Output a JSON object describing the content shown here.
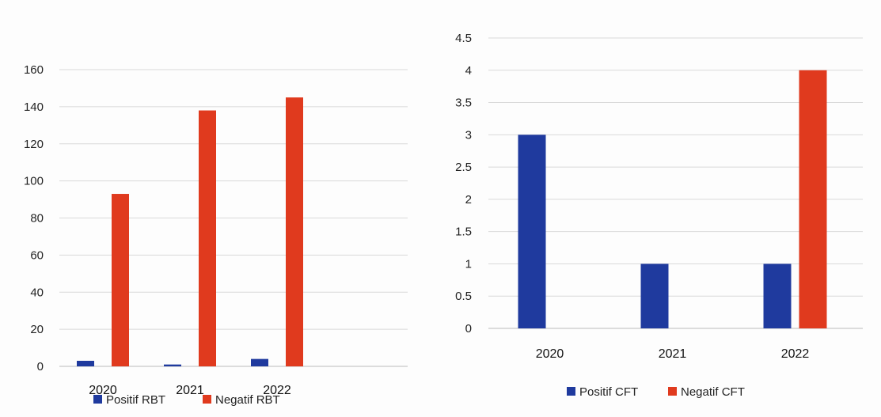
{
  "chart_data": [
    {
      "type": "bar",
      "title": "",
      "xlabel": "",
      "ylabel": "",
      "categories": [
        "2020",
        "2021",
        "2022"
      ],
      "series": [
        {
          "name": "Positif RBT",
          "values": [
            3,
            1,
            4
          ],
          "color": "#1f3a9e"
        },
        {
          "name": "Negatif RBT",
          "values": [
            93,
            138,
            145
          ],
          "color": "#e03a1e"
        }
      ],
      "ylim": [
        0,
        160
      ],
      "yticks": [
        0,
        20,
        40,
        60,
        80,
        100,
        120,
        140,
        160
      ],
      "grid": true,
      "legend": "bottom"
    },
    {
      "type": "bar",
      "title": "",
      "xlabel": "",
      "ylabel": "",
      "categories": [
        "2020",
        "2021",
        "2022"
      ],
      "series": [
        {
          "name": "Positif CFT",
          "values": [
            3,
            1,
            1
          ],
          "color": "#1f3a9e"
        },
        {
          "name": "Negatif CFT",
          "values": [
            0,
            0,
            4
          ],
          "color": "#e03a1e"
        }
      ],
      "ylim": [
        0,
        4.5
      ],
      "yticks": [
        "0",
        "0.5",
        "1",
        "1.5",
        "2",
        "2.5",
        "3",
        "3.5",
        "4",
        "4.5"
      ],
      "grid": true,
      "legend": "bottom"
    }
  ]
}
